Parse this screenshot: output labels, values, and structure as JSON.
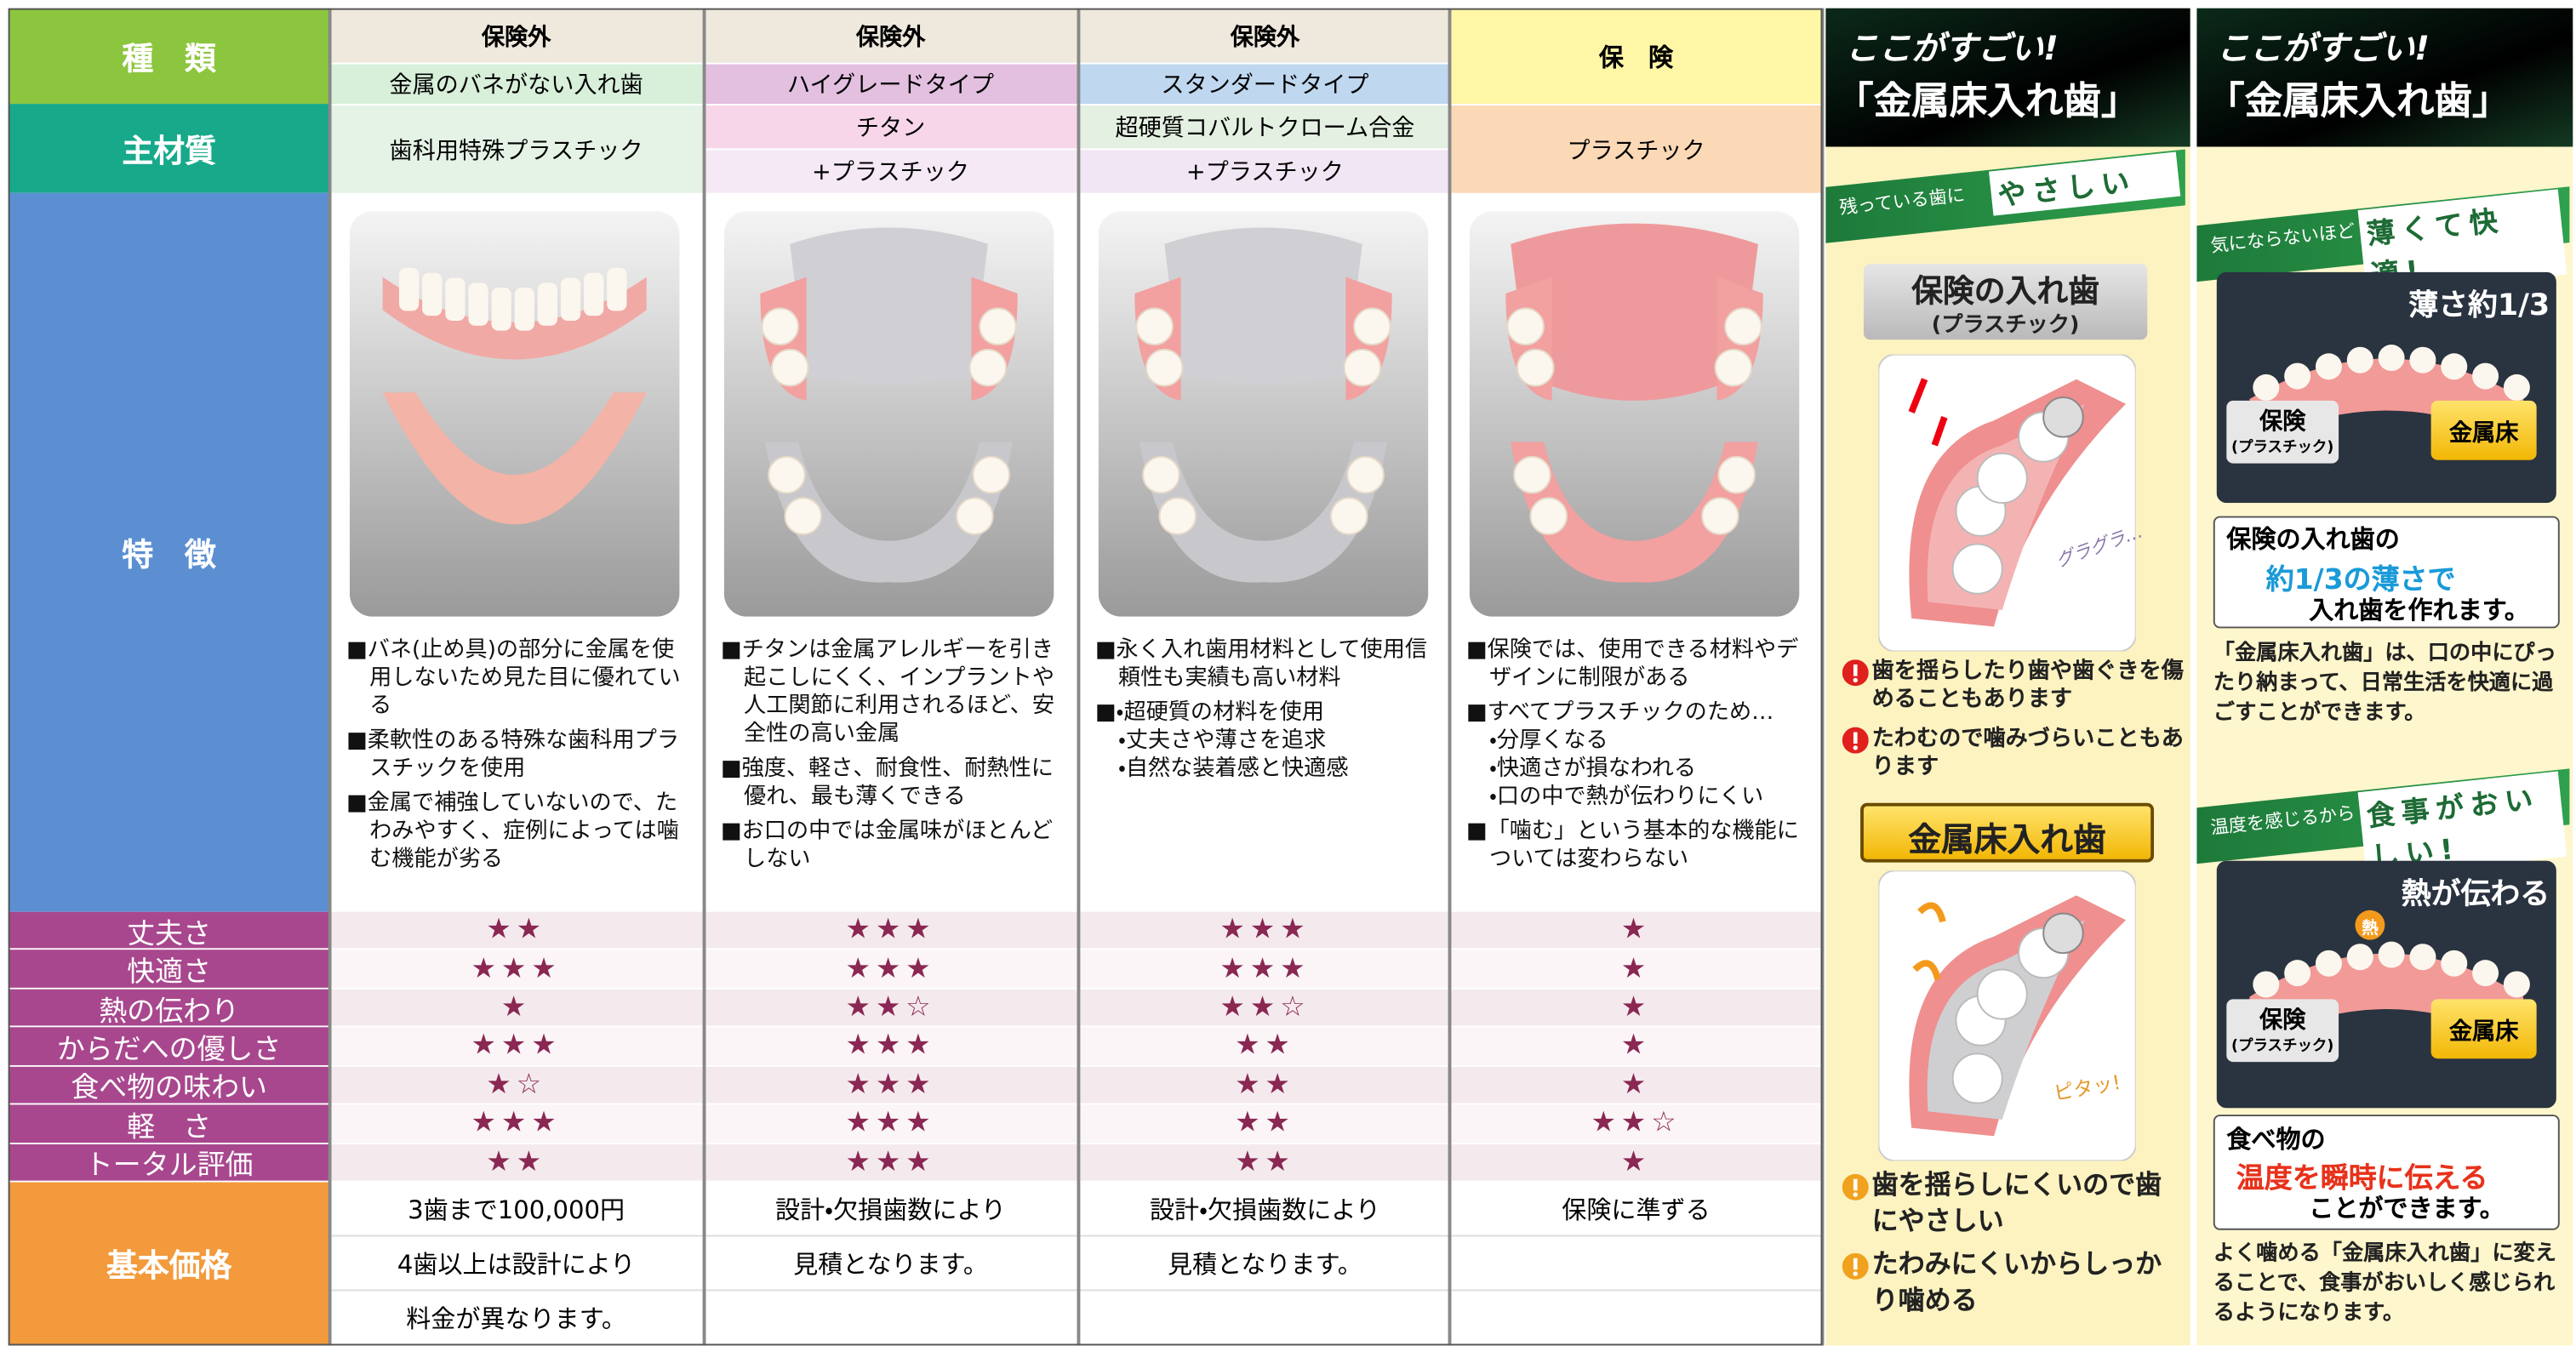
{
  "labels": {
    "kind": "種　類",
    "material": "主材質",
    "features": "特　徴",
    "price": "基本価格",
    "ratings": [
      "丈夫さ",
      "快適さ",
      "熱の伝わり",
      "からだへの優しさ",
      "食べ物の味わい",
      "軽　さ",
      "トータル評価"
    ]
  },
  "products": [
    {
      "insurance": "保険外",
      "type": "金属のバネがない入れ歯",
      "material": [
        "歯科用特殊プラスチック"
      ],
      "features": [
        "■バネ(止め具)の部分に金属を使用しないため見た目に優れている",
        "■柔軟性のある特殊な歯科用プラスチックを使用",
        "■金属で補強していないので、たわみやすく、症例によっては噛む機能が劣る"
      ],
      "ratings": [
        "★★",
        "★★★",
        "★",
        "★★★",
        "★☆",
        "★★★",
        "★★"
      ],
      "price": [
        "3歯まで100,000円",
        "4歯以上は設計により",
        "料金が異なります。"
      ]
    },
    {
      "insurance": "保険外",
      "type": "ハイグレードタイプ",
      "material": [
        "チタン",
        "+プラスチック"
      ],
      "features": [
        "■チタンは金属アレルギーを引き起こしにくく、インプラントや人工関節に利用されるほど、安全性の高い金属",
        "■強度、軽さ、耐食性、耐熱性に優れ、最も薄くできる",
        "■お口の中では金属味がほとんどしない"
      ],
      "ratings": [
        "★★★",
        "★★★",
        "★★☆",
        "★★★",
        "★★★",
        "★★★",
        "★★★"
      ],
      "price": [
        "設計・欠損歯数により",
        "見積となります。"
      ]
    },
    {
      "insurance": "保険外",
      "type": "スタンダードタイプ",
      "material": [
        "超硬質コバルトクローム合金",
        "+プラスチック"
      ],
      "features": [
        "■永く入れ歯用材料として使用信頼性も実績も高い材料",
        "■・超硬質の材料を使用",
        "・丈夫さや薄さを追求",
        "・自然な装着感と快適感"
      ],
      "ratings": [
        "★★★",
        "★★★",
        "★★☆",
        "★★",
        "★★",
        "★★",
        "★★"
      ],
      "price": [
        "設計・欠損歯数により",
        "見積となります。"
      ]
    },
    {
      "insurance": "保　険",
      "material": [
        "プラスチック"
      ],
      "features": [
        "■保険では、使用できる材料やデザインに制限がある",
        "■すべてプラスチックのため…",
        "・分厚くなる",
        "・快適さが損なわれる",
        "・口の中で熱が伝わりにくい",
        "■「噛む」という基本的な機能については変わらない"
      ],
      "ratings": [
        "★",
        "★",
        "★",
        "★",
        "★",
        "★★☆",
        "★"
      ],
      "price": [
        "保険に準ずる"
      ]
    }
  ],
  "panels": [
    {
      "title": [
        "ここがすごい!",
        "「金属床入れ歯」"
      ],
      "banner": {
        "small": "残っている歯に",
        "big": "やさしい"
      },
      "label1": [
        "保険の入れ歯",
        "(プラスチック)"
      ],
      "sound": "グラグラ…",
      "cons": [
        "歯を揺らしたり歯や歯ぐきを傷めることもあります",
        "たわむので噛みづらいこともあります"
      ],
      "label2": "金属床入れ歯",
      "fit": "ピタッ!",
      "pros": [
        "歯を揺らしにくいので歯にやさしい",
        "たわみにくいからしっかり噛める"
      ]
    },
    {
      "title": [
        "ここがすごい!",
        "「金属床入れ歯」"
      ],
      "banner1": {
        "small": "気にならないほど",
        "big": "薄くて快適!"
      },
      "photo1": {
        "caption": "薄さ約1/3",
        "left": [
          "保険",
          "(プラスチック)"
        ],
        "right": "金属床"
      },
      "callout1": [
        "保険の入れ歯の",
        "約1/3の薄さで",
        "入れ歯を作れます。"
      ],
      "text1": "「金属床入れ歯」は、口の中にぴったり納まって、日常生活を快適に過ごすことができます。",
      "banner2": {
        "small": "温度を感じるから",
        "big": "食事がおいしい!"
      },
      "photo2": {
        "caption": "熱が伝わる",
        "badge": "熱",
        "left": [
          "保険",
          "(プラスチック)"
        ],
        "right": "金属床"
      },
      "callout2": [
        "食べ物の",
        "温度を瞬時に伝える",
        "ことができます。"
      ],
      "text2": "よく噛める「金属床入れ歯」に変えることで、食事がおいしく感じられるようになります。"
    }
  ]
}
